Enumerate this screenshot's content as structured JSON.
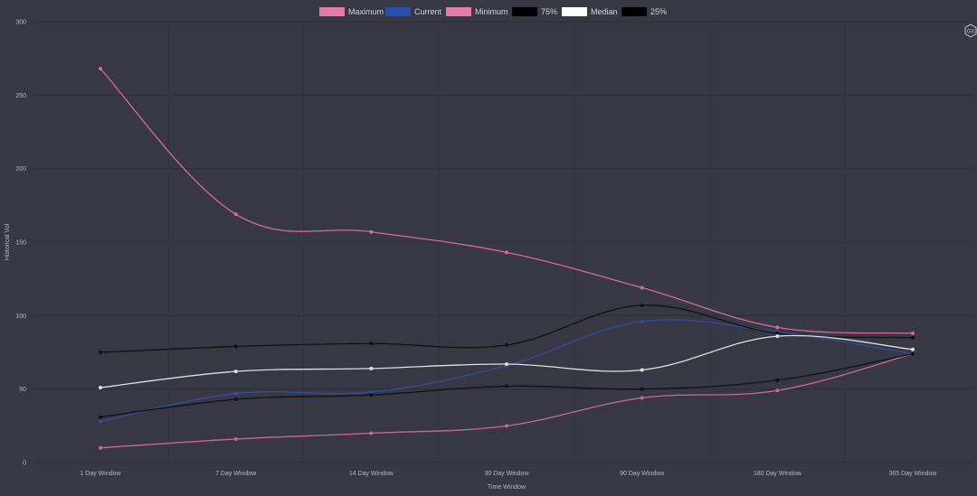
{
  "logo_text": "GV",
  "chart_data": {
    "type": "line",
    "title": "",
    "xlabel": "Time Window",
    "ylabel": "Historical Vol",
    "ylim": [
      0,
      300
    ],
    "yticks": [
      0,
      50,
      100,
      150,
      200,
      250,
      300
    ],
    "grid": true,
    "legend_position": "top-center",
    "categories": [
      "1 Day Window",
      "7 Day Window",
      "14 Day Window",
      "30 Day Window",
      "90 Day Window",
      "180 Day Window",
      "365 Day Window"
    ],
    "series": [
      {
        "name": "Maximum",
        "color": "#d56a9b",
        "legend_color": "#e37aa8",
        "values": [
          268,
          169,
          157,
          143,
          119,
          92,
          88
        ]
      },
      {
        "name": "Current",
        "color": "#2e4fa6",
        "legend_color": "#2a4eb0",
        "values": [
          28,
          47,
          48,
          66,
          96,
          89,
          74
        ]
      },
      {
        "name": "Minimum",
        "color": "#c8679a",
        "legend_color": "#e37aa8",
        "values": [
          10,
          16,
          20,
          25,
          44,
          49,
          74
        ]
      },
      {
        "name": "75%",
        "color": "#111111",
        "legend_color": "#000000",
        "values": [
          75,
          79,
          81,
          80,
          107,
          88,
          85
        ]
      },
      {
        "name": "Median",
        "color": "#dedede",
        "legend_color": "#ffffff",
        "values": [
          51,
          62,
          64,
          67,
          63,
          86,
          77
        ]
      },
      {
        "name": "25%",
        "color": "#111111",
        "legend_color": "#000000",
        "values": [
          31,
          43,
          46,
          52,
          50,
          56,
          74
        ]
      }
    ]
  }
}
